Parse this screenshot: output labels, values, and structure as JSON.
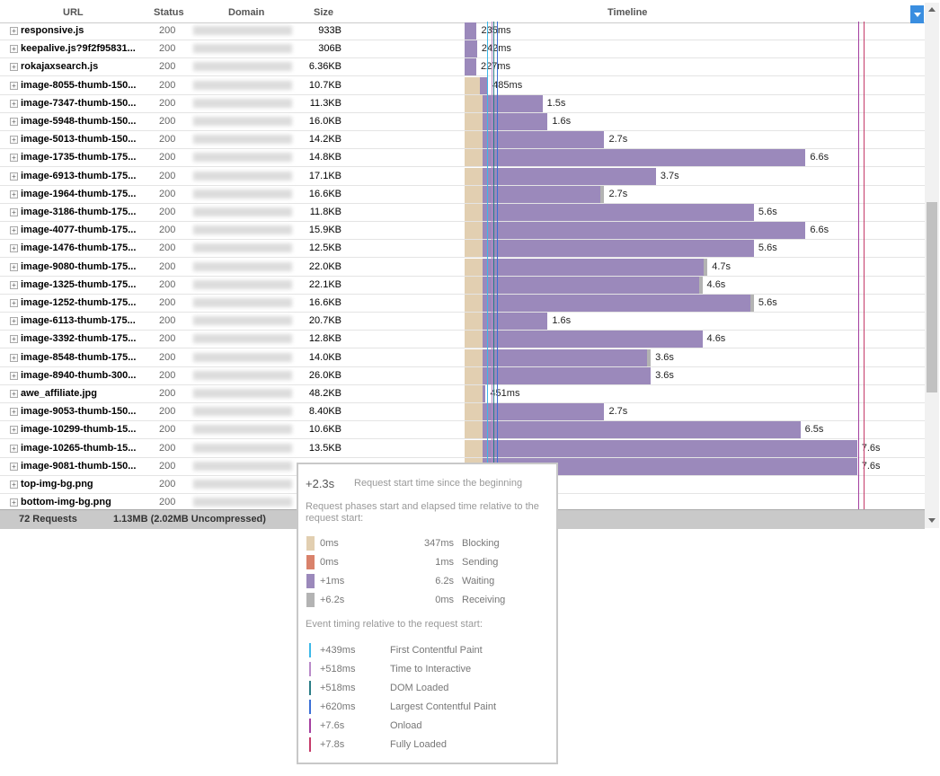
{
  "columns": {
    "url": "URL",
    "status": "Status",
    "domain": "Domain",
    "size": "Size",
    "timeline": "Timeline"
  },
  "rows": [
    {
      "url": "responsive.js",
      "status": "200",
      "size": "933B",
      "duration": "235ms",
      "block_ms": 0,
      "wait_ms": 0,
      "recv_ms": 0,
      "dur_ms": 235
    },
    {
      "url": "keepalive.js?9f2f95831...",
      "status": "200",
      "size": "306B",
      "duration": "242ms",
      "block_ms": 0,
      "wait_ms": 0,
      "recv_ms": 0,
      "dur_ms": 242
    },
    {
      "url": "rokajaxsearch.js",
      "status": "200",
      "size": "6.36KB",
      "duration": "227ms",
      "block_ms": 0,
      "wait_ms": 0,
      "recv_ms": 0,
      "dur_ms": 227
    },
    {
      "url": "image-8055-thumb-150...",
      "status": "200",
      "size": "10.7KB",
      "duration": "485ms",
      "block_ms": 300,
      "wait_ms": 160,
      "recv_ms": 0,
      "dur_ms": 485
    },
    {
      "url": "image-7347-thumb-150...",
      "status": "200",
      "size": "11.3KB",
      "duration": "1.5s",
      "block_ms": 340,
      "wait_ms": 1160,
      "recv_ms": 0,
      "dur_ms": 1500
    },
    {
      "url": "image-5948-thumb-150...",
      "status": "200",
      "size": "16.0KB",
      "duration": "1.6s",
      "block_ms": 340,
      "wait_ms": 1260,
      "recv_ms": 0,
      "dur_ms": 1600
    },
    {
      "url": "image-5013-thumb-150...",
      "status": "200",
      "size": "14.2KB",
      "duration": "2.7s",
      "block_ms": 340,
      "wait_ms": 2360,
      "recv_ms": 0,
      "dur_ms": 2700
    },
    {
      "url": "image-1735-thumb-175...",
      "status": "200",
      "size": "14.8KB",
      "duration": "6.6s",
      "block_ms": 340,
      "wait_ms": 6260,
      "recv_ms": 0,
      "dur_ms": 6600
    },
    {
      "url": "image-6913-thumb-175...",
      "status": "200",
      "size": "17.1KB",
      "duration": "3.7s",
      "block_ms": 340,
      "wait_ms": 3360,
      "recv_ms": 0,
      "dur_ms": 3700
    },
    {
      "url": "image-1964-thumb-175...",
      "status": "200",
      "size": "16.6KB",
      "duration": "2.7s",
      "block_ms": 340,
      "wait_ms": 2290,
      "recv_ms": 70,
      "dur_ms": 2700
    },
    {
      "url": "image-3186-thumb-175...",
      "status": "200",
      "size": "11.8KB",
      "duration": "5.6s",
      "block_ms": 340,
      "wait_ms": 5260,
      "recv_ms": 0,
      "dur_ms": 5600
    },
    {
      "url": "image-4077-thumb-175...",
      "status": "200",
      "size": "15.9KB",
      "duration": "6.6s",
      "block_ms": 340,
      "wait_ms": 6260,
      "recv_ms": 0,
      "dur_ms": 6600
    },
    {
      "url": "image-1476-thumb-175...",
      "status": "200",
      "size": "12.5KB",
      "duration": "5.6s",
      "block_ms": 340,
      "wait_ms": 5260,
      "recv_ms": 0,
      "dur_ms": 5600
    },
    {
      "url": "image-9080-thumb-175...",
      "status": "200",
      "size": "22.0KB",
      "duration": "4.7s",
      "block_ms": 340,
      "wait_ms": 4290,
      "recv_ms": 70,
      "dur_ms": 4700
    },
    {
      "url": "image-1325-thumb-175...",
      "status": "200",
      "size": "22.1KB",
      "duration": "4.6s",
      "block_ms": 340,
      "wait_ms": 4190,
      "recv_ms": 70,
      "dur_ms": 4600
    },
    {
      "url": "image-1252-thumb-175...",
      "status": "200",
      "size": "16.6KB",
      "duration": "5.6s",
      "block_ms": 340,
      "wait_ms": 5190,
      "recv_ms": 70,
      "dur_ms": 5600
    },
    {
      "url": "image-6113-thumb-175...",
      "status": "200",
      "size": "20.7KB",
      "duration": "1.6s",
      "block_ms": 340,
      "wait_ms": 1260,
      "recv_ms": 0,
      "dur_ms": 1600
    },
    {
      "url": "image-3392-thumb-175...",
      "status": "200",
      "size": "12.8KB",
      "duration": "4.6s",
      "block_ms": 340,
      "wait_ms": 4260,
      "recv_ms": 0,
      "dur_ms": 4600
    },
    {
      "url": "image-8548-thumb-175...",
      "status": "200",
      "size": "14.0KB",
      "duration": "3.6s",
      "block_ms": 340,
      "wait_ms": 3190,
      "recv_ms": 70,
      "dur_ms": 3600
    },
    {
      "url": "image-8940-thumb-300...",
      "status": "200",
      "size": "26.0KB",
      "duration": "3.6s",
      "block_ms": 340,
      "wait_ms": 3260,
      "recv_ms": 0,
      "dur_ms": 3600
    },
    {
      "url": "awe_affiliate.jpg",
      "status": "200",
      "size": "48.2KB",
      "duration": "451ms",
      "block_ms": 340,
      "wait_ms": 60,
      "recv_ms": 0,
      "dur_ms": 451
    },
    {
      "url": "image-9053-thumb-150...",
      "status": "200",
      "size": "8.40KB",
      "duration": "2.7s",
      "block_ms": 340,
      "wait_ms": 2360,
      "recv_ms": 0,
      "dur_ms": 2700
    },
    {
      "url": "image-10299-thumb-15...",
      "status": "200",
      "size": "10.6KB",
      "duration": "6.5s",
      "block_ms": 340,
      "wait_ms": 6160,
      "recv_ms": 0,
      "dur_ms": 6500
    },
    {
      "url": "image-10265-thumb-15...",
      "status": "200",
      "size": "13.5KB",
      "duration": "7.6s",
      "block_ms": 340,
      "wait_ms": 7260,
      "recv_ms": 0,
      "dur_ms": 7600
    },
    {
      "url": "image-9081-thumb-150...",
      "status": "200",
      "size": "",
      "duration": "7.6s",
      "block_ms": 340,
      "wait_ms": 7260,
      "recv_ms": 0,
      "dur_ms": 7600
    },
    {
      "url": "top-img-bg.png",
      "status": "200",
      "size": "",
      "duration": "",
      "block_ms": 0,
      "wait_ms": 0,
      "recv_ms": 0,
      "dur_ms": 0
    },
    {
      "url": "bottom-img-bg.png",
      "status": "200",
      "size": "",
      "duration": "",
      "block_ms": 0,
      "wait_ms": 0,
      "recv_ms": 0,
      "dur_ms": 0
    }
  ],
  "footer": {
    "requests": "72 Requests",
    "size": "1.13MB  (2.02MB Uncompressed)"
  },
  "tooltip": {
    "start": "+2.3s",
    "start_label": "Request start time since the beginning",
    "phases_title": "Request phases start and elapsed time relative to the request start:",
    "phases": [
      {
        "start": "0ms",
        "duration": "347ms",
        "name": "Blocking",
        "color": "#e2cfb1"
      },
      {
        "start": "0ms",
        "duration": "1ms",
        "name": "Sending",
        "color": "#d9826b"
      },
      {
        "start": "+1ms",
        "duration": "6.2s",
        "name": "Waiting",
        "color": "#9b89bb"
      },
      {
        "start": "+6.2s",
        "duration": "0ms",
        "name": "Receiving",
        "color": "#b3b3b3"
      }
    ],
    "events_title": "Event timing relative to the request start:",
    "events": [
      {
        "time": "+439ms",
        "name": "First Contentful Paint",
        "color": "#3db8e8"
      },
      {
        "time": "+518ms",
        "name": "Time to Interactive",
        "color": "#b98ac9"
      },
      {
        "time": "+518ms",
        "name": "DOM Loaded",
        "color": "#2b7d87"
      },
      {
        "time": "+620ms",
        "name": "Largest Contentful Paint",
        "color": "#3b6fd6"
      },
      {
        "time": "+7.6s",
        "name": "Onload",
        "color": "#a43fa0"
      },
      {
        "time": "+7.8s",
        "name": "Fully Loaded",
        "color": "#c53a6a"
      }
    ]
  },
  "colors": {
    "blocking": "#e2cfb1",
    "waiting": "#9b89bb",
    "receiving": "#b3b3b3",
    "accent": "#3a8ee0"
  }
}
